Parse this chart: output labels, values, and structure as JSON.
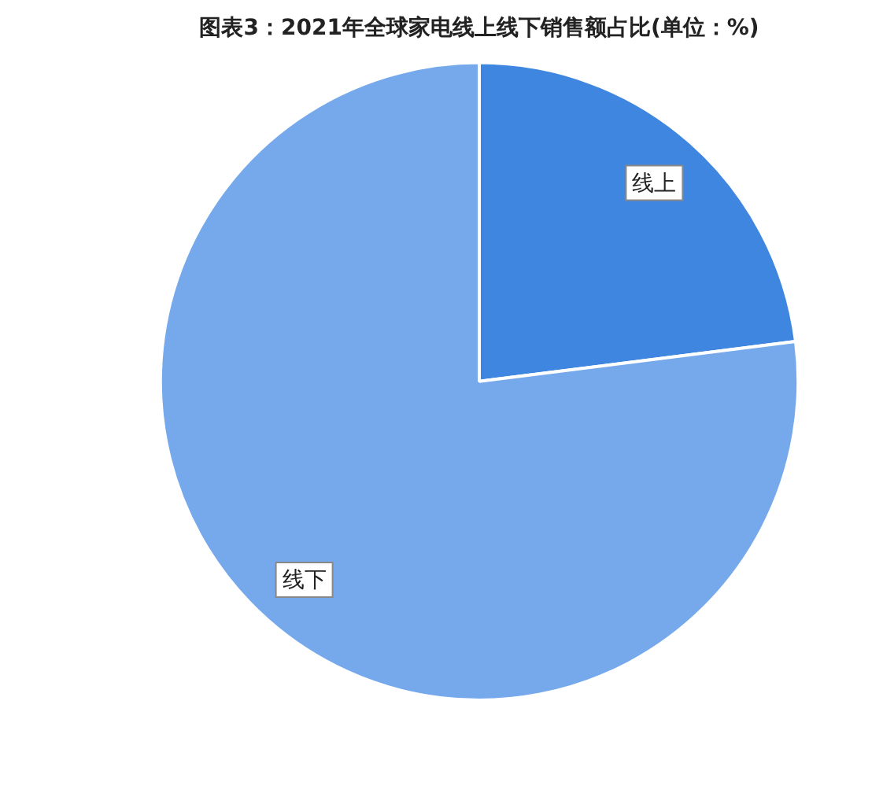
{
  "chart_data": {
    "type": "pie",
    "title": "图表3：2021年全球家电线上线下销售额占比(单位：%)",
    "categories": [
      "线上",
      "线下"
    ],
    "values": [
      23,
      77
    ],
    "colors": [
      "#3f86e0",
      "#76a9ec"
    ],
    "legend": false
  }
}
